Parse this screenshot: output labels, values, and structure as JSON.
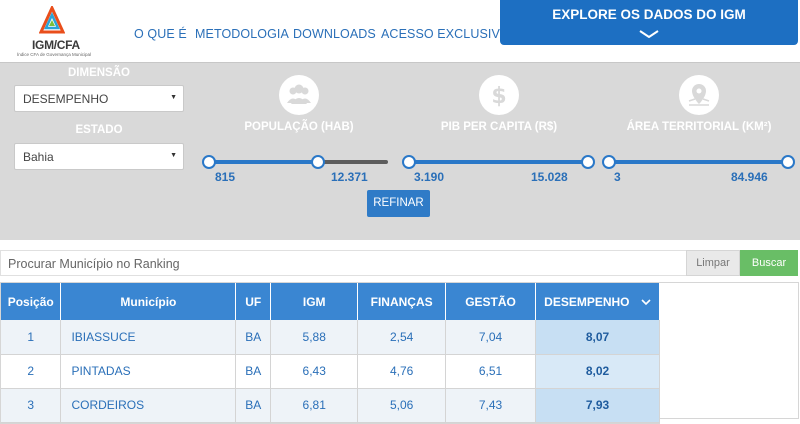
{
  "header": {
    "logo_title": "IGM/CFA",
    "logo_subtitle": "Índice CFA de Governança Municipal",
    "nav": [
      "O QUE É",
      "METODOLOGIA",
      "DOWNLOADS",
      "ACESSO EXCLUSIVO"
    ],
    "explore_label": "EXPLORE OS DADOS DO IGM"
  },
  "filters": {
    "dimension_label": "DIMENSÃO",
    "dimension_value": "DESEMPENHO",
    "state_label": "ESTADO",
    "state_value": "Bahia",
    "sliders": [
      {
        "icon": "people-icon",
        "label": "POPULAÇÃO (HAB)",
        "min": "815",
        "max": "12.371"
      },
      {
        "icon": "dollar-icon",
        "label": "PIB PER CAPITA (R$)",
        "min": "3.190",
        "max": "15.028"
      },
      {
        "icon": "map-pin-icon",
        "label": "ÁREA TERRITORIAL (KM²)",
        "min": "3",
        "max": "84.946"
      }
    ],
    "population_selected_fraction": 0.6,
    "refine_label": "REFINAR"
  },
  "search": {
    "placeholder": "Procurar Município no Ranking",
    "clear_label": "Limpar",
    "search_label": "Buscar"
  },
  "table": {
    "headers": [
      "Posição",
      "Município",
      "UF",
      "IGM",
      "FINANÇAS",
      "GESTÃO",
      "DESEMPENHO"
    ],
    "rows": [
      [
        "1",
        "IBIASSUCE",
        "BA",
        "5,88",
        "2,54",
        "7,04",
        "8,07"
      ],
      [
        "2",
        "PINTADAS",
        "BA",
        "6,43",
        "4,76",
        "6,51",
        "8,02"
      ],
      [
        "3",
        "CORDEIROS",
        "BA",
        "6,81",
        "5,06",
        "7,43",
        "7,93"
      ]
    ]
  },
  "colors": {
    "brand_blue": "#1d6fc2",
    "header_blue": "#3a86d2",
    "search_green": "#69be66",
    "panel_gray": "#d9d9d9"
  }
}
